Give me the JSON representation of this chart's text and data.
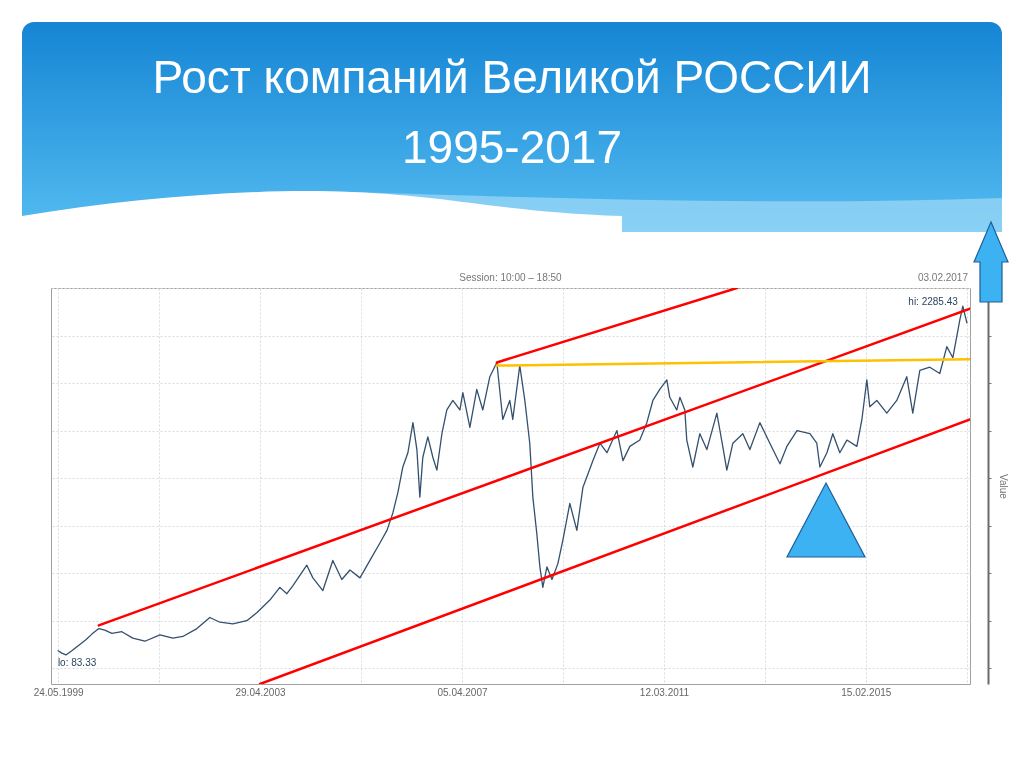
{
  "chart_data": {
    "type": "line",
    "title": "Рост компаний Великой РОССИИ 1995-2017",
    "ylabel": "Value",
    "annotations": [
      "Session: 10:00 – 18:50",
      "03.02.2017"
    ],
    "xlim": [
      "1999-04-03",
      "2017-02-25"
    ],
    "xticks": [
      {
        "value": "1999-05-24",
        "label": "24.05.1999"
      },
      {
        "value": "2001-05-11",
        "label": null
      },
      {
        "value": "2003-04-29",
        "label": "29.04.2003"
      },
      {
        "value": "2005-04-17",
        "label": null
      },
      {
        "value": "2007-04-05",
        "label": "05.04.2007"
      },
      {
        "value": "2009-03-23",
        "label": null
      },
      {
        "value": "2011-03-12",
        "label": "12.03.2011"
      },
      {
        "value": "2013-02-27",
        "label": null
      },
      {
        "value": "2015-02-15",
        "label": "15.02.2015"
      },
      {
        "value": "2017-02-03",
        "label": null
      }
    ],
    "ylim": [
      -100,
      2400
    ],
    "yticks": [
      {
        "value": 0,
        "label": null
      },
      {
        "value": 300,
        "label": null
      },
      {
        "value": 600,
        "label": null
      },
      {
        "value": 900,
        "label": null
      },
      {
        "value": 1200,
        "label": null
      },
      {
        "value": 1500,
        "label": null
      },
      {
        "value": 1800,
        "label": null
      },
      {
        "value": 2100,
        "label": null
      },
      {
        "value": 2400,
        "label": null
      }
    ],
    "tick_labels": "x",
    "grid": true,
    "series": [
      {
        "color": "#34506e",
        "x": [
          "1999-05-24",
          "1999-06-19",
          "1999-07-18",
          "1999-08-29",
          "1999-10-18",
          "1999-12-07",
          "2000-01-19",
          "2000-03-08",
          "2000-04-20",
          "2000-06-09",
          "2000-08-19",
          "2000-11-05",
          "2001-01-30",
          "2001-05-17",
          "2001-08-17",
          "2001-10-27",
          "2002-02-04",
          "2002-05-07",
          "2002-07-18",
          "2002-10-18",
          "2003-01-25",
          "2003-04-06",
          "2003-07-08",
          "2003-09-17",
          "2003-11-06",
          "2003-12-18",
          "2004-03-27",
          "2004-05-09",
          "2004-07-19",
          "2004-09-28",
          "2004-12-01",
          "2005-01-28",
          "2005-04-09",
          "2005-06-19",
          "2005-08-29",
          "2005-10-18",
          "2005-11-29",
          "2006-01-04",
          "2006-02-08",
          "2006-03-16",
          "2006-04-21",
          "2006-05-19",
          "2006-06-09",
          "2006-06-30",
          "2006-08-05",
          "2006-09-10",
          "2006-10-08",
          "2006-11-13",
          "2006-12-18",
          "2007-01-30",
          "2007-03-21",
          "2007-04-11",
          "2007-05-31",
          "2007-07-19",
          "2007-08-31",
          "2007-10-20",
          "2007-12-09",
          "2008-01-20",
          "2008-03-10",
          "2008-03-31",
          "2008-05-20",
          "2008-06-25",
          "2008-07-30",
          "2008-08-21",
          "2008-09-18",
          "2008-10-10",
          "2008-10-31",
          "2008-11-29",
          "2009-01-04",
          "2009-02-15",
          "2009-03-23",
          "2009-05-11",
          "2009-06-30",
          "2009-08-12",
          "2009-10-22",
          "2009-12-11",
          "2010-01-30",
          "2010-04-11",
          "2010-05-24",
          "2010-07-12",
          "2010-09-21",
          "2010-11-10",
          "2010-12-23",
          "2011-02-10",
          "2011-04-01",
          "2011-04-22",
          "2011-06-11",
          "2011-07-03",
          "2011-08-07",
          "2011-08-21",
          "2011-10-03",
          "2011-11-22",
          "2012-01-11",
          "2012-03-22",
          "2012-05-03",
          "2012-06-01",
          "2012-07-14",
          "2012-09-23",
          "2012-11-12",
          "2013-01-22",
          "2013-04-03",
          "2013-06-14",
          "2013-08-02",
          "2013-10-13",
          "2014-01-13",
          "2014-03-03",
          "2014-03-25",
          "2014-05-14",
          "2014-06-25",
          "2014-08-14",
          "2014-10-03",
          "2014-12-13",
          "2015-01-18",
          "2015-02-22",
          "2015-03-15",
          "2015-05-04",
          "2015-07-14",
          "2015-09-23",
          "2015-12-03",
          "2016-01-15",
          "2016-03-05",
          "2016-05-15",
          "2016-07-25",
          "2016-09-13",
          "2016-10-26",
          "2016-12-15",
          "2017-01-05",
          "2017-02-03"
        ],
        "values": [
          110,
          95,
          83.33,
          110,
          145,
          180,
          215,
          250,
          240,
          220,
          230,
          190,
          170,
          210,
          190,
          200,
          250,
          320,
          290,
          280,
          300,
          350,
          430,
          510,
          470,
          520,
          650,
          570,
          490,
          680,
          560,
          620,
          570,
          680,
          790,
          870,
          980,
          1110,
          1270,
          1360,
          1550,
          1380,
          1080,
          1330,
          1460,
          1330,
          1250,
          1480,
          1630,
          1690,
          1630,
          1740,
          1520,
          1760,
          1630,
          1840,
          1930,
          1570,
          1690,
          1570,
          1910,
          1690,
          1420,
          1080,
          850,
          640,
          510,
          640,
          560,
          660,
          810,
          1040,
          870,
          1140,
          1310,
          1420,
          1360,
          1500,
          1310,
          1400,
          1440,
          1550,
          1690,
          1760,
          1820,
          1710,
          1630,
          1710,
          1630,
          1440,
          1270,
          1480,
          1380,
          1610,
          1400,
          1250,
          1420,
          1480,
          1380,
          1550,
          1420,
          1290,
          1400,
          1500,
          1480,
          1420,
          1270,
          1360,
          1480,
          1360,
          1440,
          1400,
          1570,
          1820,
          1650,
          1690,
          1610,
          1690,
          1840,
          1610,
          1880,
          1900,
          1860,
          2030,
          1960,
          2200,
          2285.43,
          2180
        ],
        "value_labels": [
          null,
          null,
          "lo: 83.33",
          null,
          null,
          null,
          null,
          null,
          null,
          null,
          null,
          null,
          null,
          null,
          null,
          null,
          null,
          null,
          null,
          null,
          null,
          null,
          null,
          null,
          null,
          null,
          null,
          null,
          null,
          null,
          null,
          null,
          null,
          null,
          null,
          null,
          null,
          null,
          null,
          null,
          null,
          null,
          null,
          null,
          null,
          null,
          null,
          null,
          null,
          null,
          null,
          null,
          null,
          null,
          null,
          null,
          null,
          null,
          null,
          null,
          null,
          null,
          null,
          null,
          null,
          null,
          null,
          null,
          null,
          null,
          null,
          null,
          null,
          null,
          null,
          null,
          null,
          null,
          null,
          null,
          null,
          null,
          null,
          null,
          null,
          null,
          null,
          null,
          null,
          null,
          null,
          null,
          null,
          null,
          null,
          null,
          null,
          null,
          null,
          null,
          null,
          null,
          null,
          null,
          null,
          null,
          null,
          null,
          null,
          null,
          null,
          null,
          null,
          null,
          null,
          null,
          null,
          null,
          null,
          null,
          null,
          null,
          null,
          null,
          null,
          null,
          "hi: 2285.43",
          null
        ]
      },
      {
        "type": "line",
        "color": "#ff0000",
        "x": [
          "2007-12-09",
          "2012-08-12"
        ],
        "values": [
          1930,
          2400
        ]
      },
      {
        "type": "line",
        "color": "#ff0000",
        "x": [
          "2000-03-08",
          "2017-02-25"
        ],
        "values": [
          270,
          2270
        ]
      },
      {
        "type": "line",
        "color": "#ff0000",
        "x": [
          "2003-04-29",
          "2017-02-25"
        ],
        "values": [
          -100,
          1570
        ]
      },
      {
        "type": "line",
        "color": "#ffc000",
        "x": [
          "2007-12-09",
          "2017-02-25"
        ],
        "values": [
          1910,
          1950
        ]
      }
    ]
  }
}
